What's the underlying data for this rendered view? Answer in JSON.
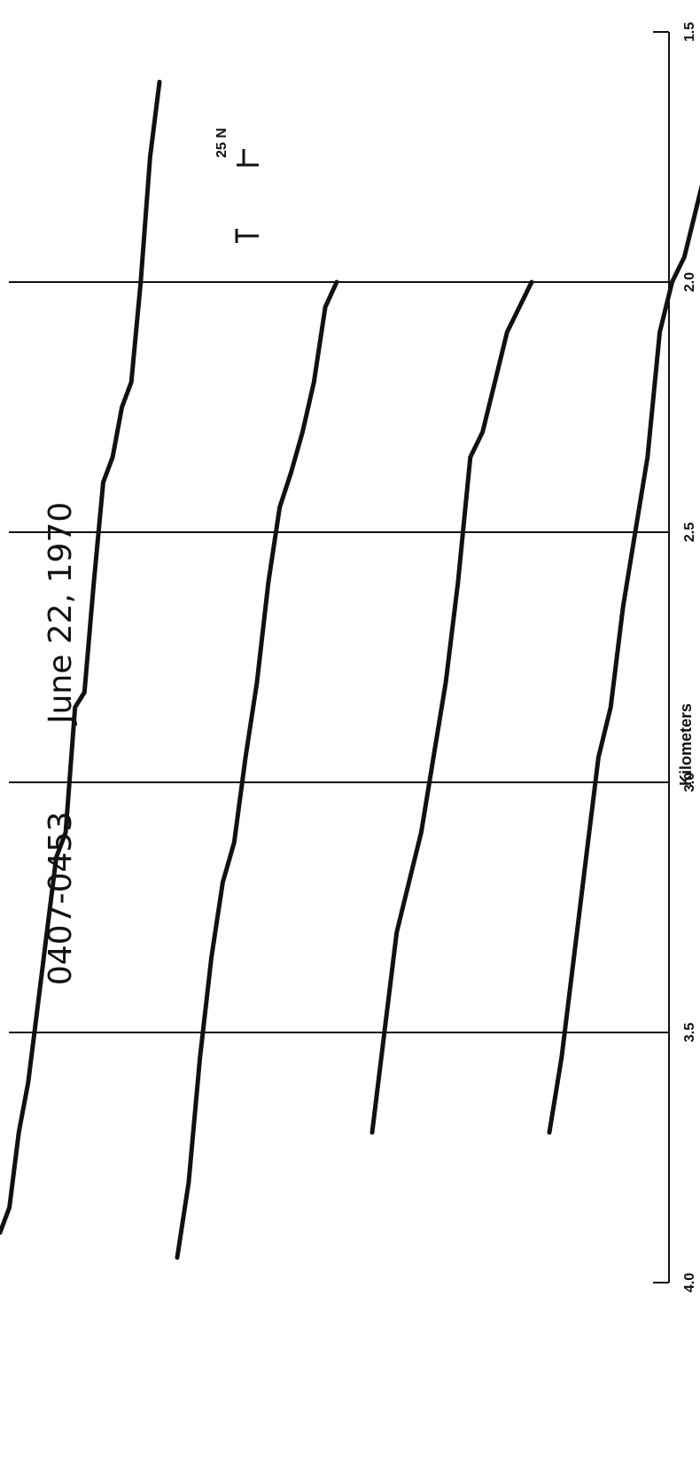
{
  "chart_data": {
    "type": "line",
    "title": "0407-0453",
    "date": "June 22, 1970",
    "ylabel": "Kilometers",
    "yticks": [
      "4.0",
      "3.5",
      "3.0",
      "2.5",
      "2.0",
      "1.5"
    ],
    "ylim": [
      1.5,
      4.0
    ],
    "gridlines": [
      3.5,
      3.0,
      2.5,
      2.0
    ],
    "legend": {
      "label": "25 N"
    },
    "series": [
      {
        "values": [
          3.9,
          3.85,
          3.7,
          3.6,
          3.45,
          3.3,
          3.15,
          3.1,
          2.85,
          2.82,
          2.6,
          2.4,
          2.35,
          2.25,
          2.2,
          2.0,
          1.75,
          1.6
        ]
      },
      {
        "values": [
          3.95,
          3.8,
          3.55,
          3.35,
          3.2,
          3.12,
          2.95,
          2.8,
          2.6,
          2.45,
          2.38,
          2.3,
          2.2,
          2.05,
          2.0
        ]
      },
      {
        "values": [
          3.7,
          3.5,
          3.3,
          3.2,
          3.1,
          2.95,
          2.8,
          2.6,
          2.35,
          2.3,
          2.2,
          2.1,
          2.05,
          2.0
        ]
      },
      {
        "values": [
          3.7,
          3.55,
          3.35,
          3.15,
          2.95,
          2.85,
          2.65,
          2.5,
          2.35,
          2.1,
          2.0,
          1.95,
          1.85,
          1.75
        ]
      }
    ]
  }
}
